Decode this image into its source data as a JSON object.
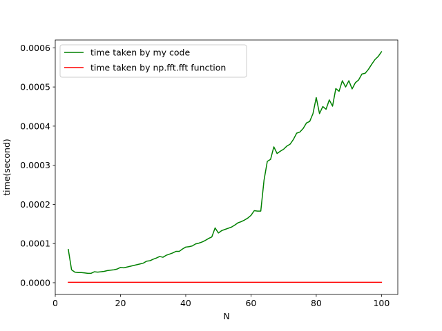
{
  "chart_data": {
    "type": "line",
    "xlabel": "N",
    "ylabel": "time(second)",
    "xlim": [
      0,
      105
    ],
    "ylim": [
      -3e-05,
      0.00062
    ],
    "xticks": [
      0,
      20,
      40,
      60,
      80,
      100
    ],
    "xtick_labels": [
      "0",
      "20",
      "40",
      "60",
      "80",
      "100"
    ],
    "yticks": [
      0.0,
      0.0001,
      0.0002,
      0.0003,
      0.0004,
      0.0005,
      0.0006
    ],
    "ytick_labels": [
      "0.0000",
      "0.0001",
      "0.0002",
      "0.0003",
      "0.0004",
      "0.0005",
      "0.0006"
    ],
    "grid": false,
    "legend_position": "top-left",
    "series": [
      {
        "name": "time taken by my code",
        "color": "#008000",
        "x": [
          4,
          5,
          6,
          7,
          8,
          9,
          10,
          11,
          12,
          13,
          14,
          15,
          16,
          17,
          18,
          19,
          20,
          21,
          22,
          23,
          24,
          25,
          26,
          27,
          28,
          29,
          30,
          31,
          32,
          33,
          34,
          35,
          36,
          37,
          38,
          39,
          40,
          41,
          42,
          43,
          44,
          45,
          46,
          47,
          48,
          49,
          50,
          51,
          52,
          53,
          54,
          55,
          56,
          57,
          58,
          59,
          60,
          61,
          62,
          63,
          64,
          65,
          66,
          67,
          68,
          69,
          70,
          71,
          72,
          73,
          74,
          75,
          76,
          77,
          78,
          79,
          80,
          81,
          82,
          83,
          84,
          85,
          86,
          87,
          88,
          89,
          90,
          91,
          92,
          93,
          94,
          95,
          96,
          97,
          98,
          99,
          100
        ],
        "y": [
          8.5e-05,
          3.3e-05,
          2.7e-05,
          2.6e-05,
          2.6e-05,
          2.5e-05,
          2.4e-05,
          2.4e-05,
          2.8e-05,
          2.7e-05,
          2.8e-05,
          2.9e-05,
          3.1e-05,
          3.2e-05,
          3.3e-05,
          3.5e-05,
          3.9e-05,
          3.8e-05,
          4e-05,
          4.2e-05,
          4.4e-05,
          4.6e-05,
          4.8e-05,
          5e-05,
          5.5e-05,
          5.6e-05,
          6e-05,
          6.3e-05,
          6.7e-05,
          6.5e-05,
          7e-05,
          7.3e-05,
          7.6e-05,
          8e-05,
          8e-05,
          8.6e-05,
          9.1e-05,
          9.2e-05,
          9.4e-05,
          9.9e-05,
          0.000101,
          0.000104,
          0.000108,
          0.000113,
          0.000117,
          0.00014,
          0.000127,
          0.000133,
          0.000136,
          0.000139,
          0.000142,
          0.000147,
          0.000153,
          0.000156,
          0.00016,
          0.000165,
          0.000172,
          0.000184,
          0.000183,
          0.000183,
          0.000262,
          0.00031,
          0.000315,
          0.000347,
          0.00033,
          0.000336,
          0.000341,
          0.000349,
          0.000354,
          0.000366,
          0.000382,
          0.000385,
          0.000394,
          0.000408,
          0.000412,
          0.000432,
          0.000473,
          0.000432,
          0.00045,
          0.000443,
          0.000467,
          0.000451,
          0.000496,
          0.000489,
          0.000516,
          0.0005,
          0.000516,
          0.000495,
          0.000511,
          0.000518,
          0.000533,
          0.000535,
          0.000545,
          0.000558,
          0.00057,
          0.000578,
          0.00059
        ]
      },
      {
        "name": "time taken by np.fft.fft function",
        "color": "#ff0000",
        "x": [
          4,
          10,
          20,
          30,
          40,
          50,
          60,
          70,
          80,
          90,
          100
        ],
        "y": [
          1e-06,
          1e-06,
          1e-06,
          1e-06,
          1e-06,
          1e-06,
          1e-06,
          1e-06,
          1e-06,
          1e-06,
          1e-06
        ]
      }
    ]
  }
}
